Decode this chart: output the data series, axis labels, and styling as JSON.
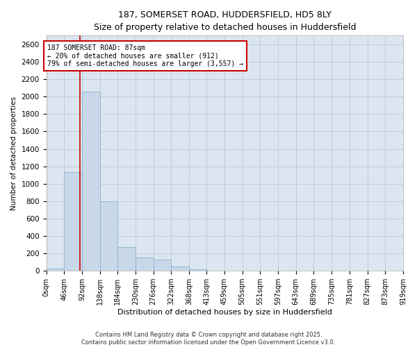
{
  "title_line1": "187, SOMERSET ROAD, HUDDERSFIELD, HD5 8LY",
  "title_line2": "Size of property relative to detached houses in Huddersfield",
  "xlabel": "Distribution of detached houses by size in Huddersfield",
  "ylabel": "Number of detached properties",
  "footer": "Contains HM Land Registry data © Crown copyright and database right 2025.\nContains public sector information licensed under the Open Government Licence v3.0.",
  "bar_color": "#c8d8e8",
  "bar_edge_color": "#8ab4cc",
  "annotation_box_color": "#cc0000",
  "vline_color": "#cc0000",
  "grid_color": "#c0ccd8",
  "bg_color": "#dce6f0",
  "bins": [
    0,
    46,
    92,
    138,
    184,
    230,
    276,
    322,
    368,
    413,
    459,
    505,
    551,
    597,
    643,
    689,
    735,
    781,
    827,
    873,
    919
  ],
  "bin_labels": [
    "0sqm",
    "46sqm",
    "92sqm",
    "138sqm",
    "184sqm",
    "230sqm",
    "276sqm",
    "322sqm",
    "368sqm",
    "413sqm",
    "459sqm",
    "505sqm",
    "551sqm",
    "597sqm",
    "643sqm",
    "689sqm",
    "735sqm",
    "781sqm",
    "827sqm",
    "873sqm",
    "919sqm"
  ],
  "bar_heights": [
    30,
    1130,
    2060,
    800,
    270,
    155,
    130,
    50,
    20,
    5,
    0,
    0,
    0,
    0,
    0,
    0,
    0,
    0,
    0,
    0
  ],
  "property_size": 87,
  "property_label": "187 SOMERSET ROAD: 87sqm",
  "annotation_line2": "← 20% of detached houses are smaller (912)",
  "annotation_line3": "79% of semi-detached houses are larger (3,557) →",
  "ylim": [
    0,
    2700
  ],
  "yticks": [
    0,
    200,
    400,
    600,
    800,
    1000,
    1200,
    1400,
    1600,
    1800,
    2000,
    2200,
    2400,
    2600
  ],
  "figsize": [
    6.0,
    5.0
  ],
  "dpi": 100
}
